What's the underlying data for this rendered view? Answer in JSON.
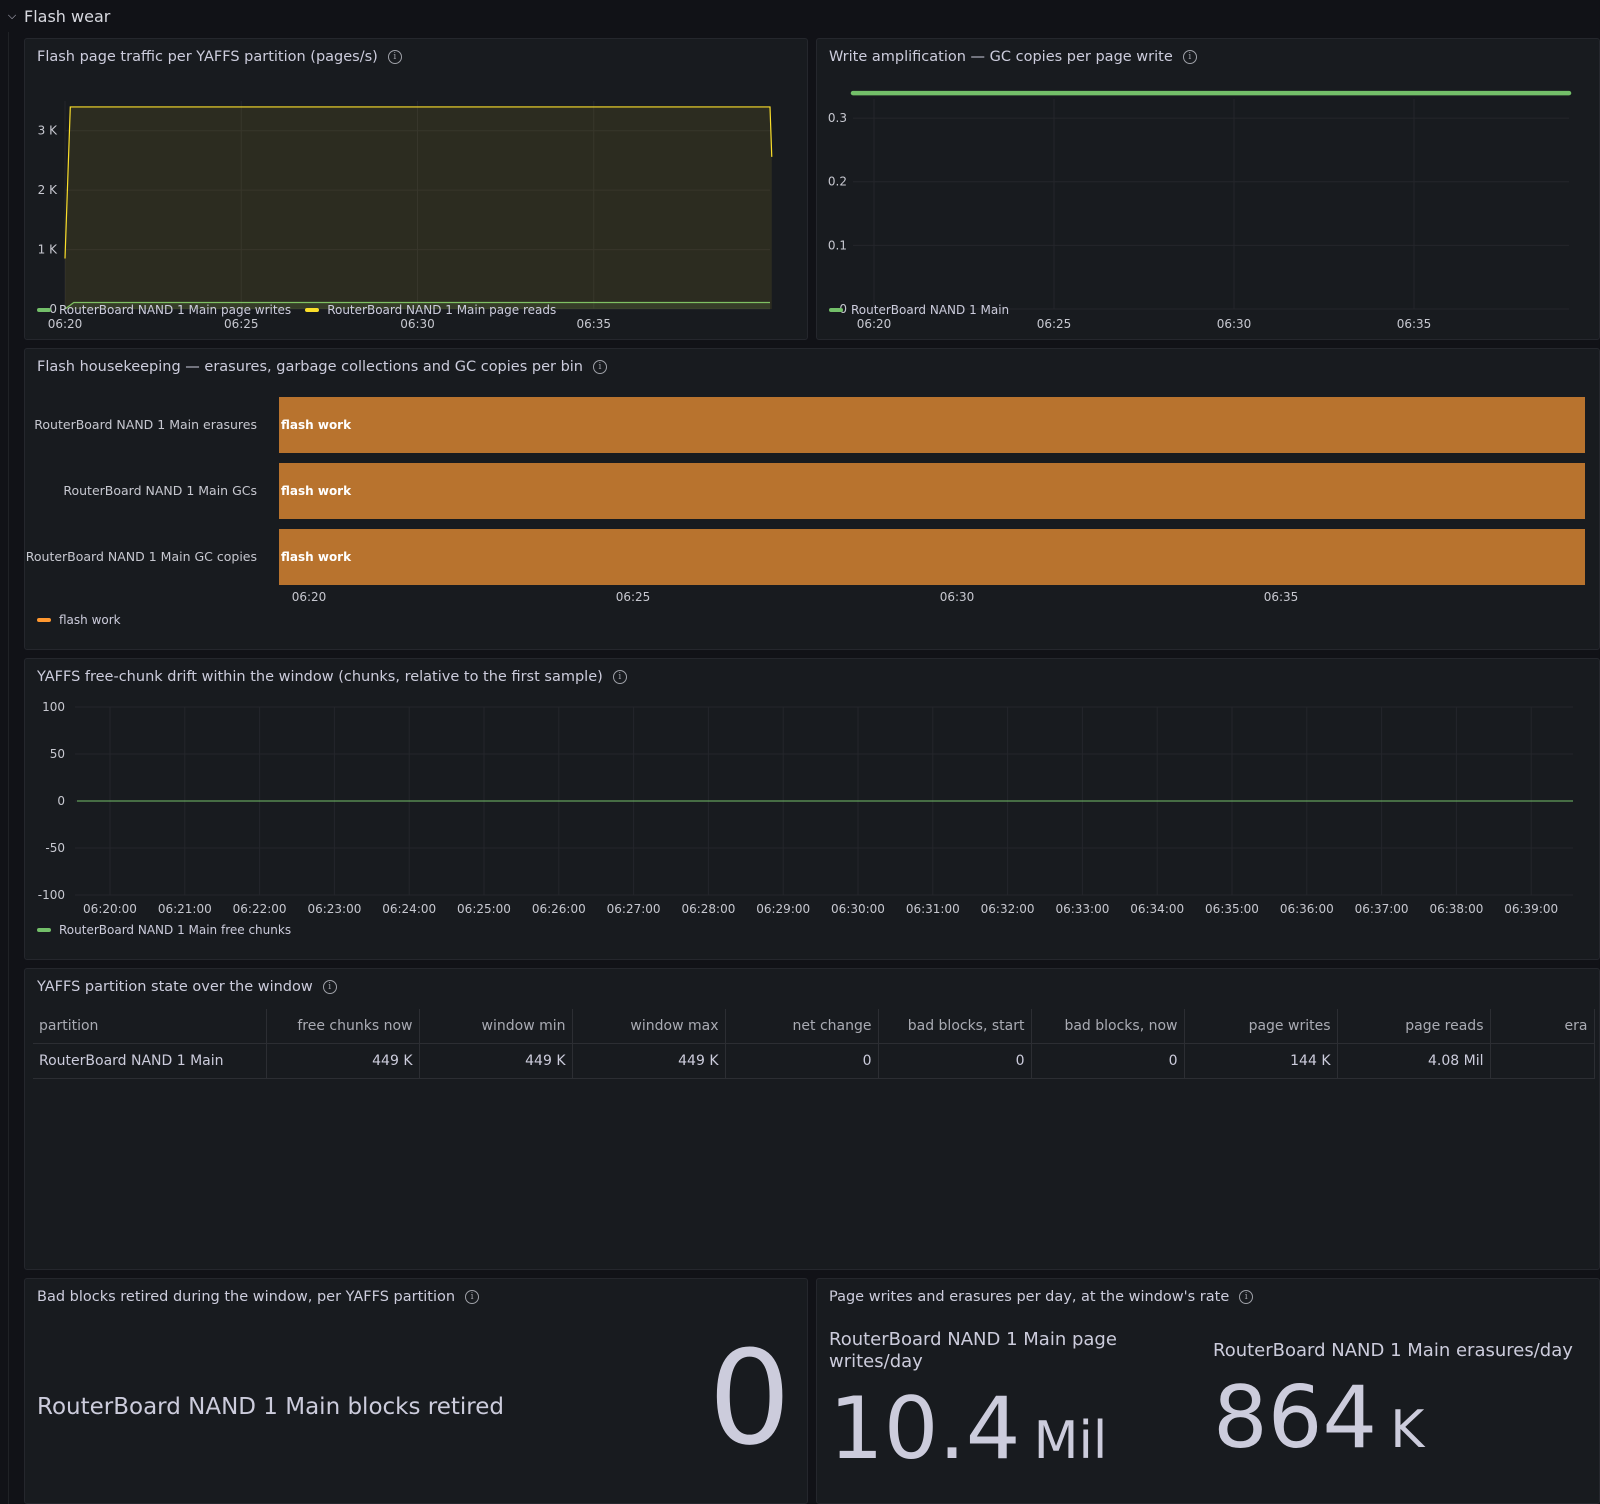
{
  "row": {
    "title": "Flash wear",
    "chevron_icon": "chevron-down-icon"
  },
  "colors": {
    "green": "#73bf69",
    "yellow": "#fade2a",
    "orange": "#b8732e",
    "background": "#111217",
    "panel": "#181b1f"
  },
  "traffic": {
    "title": "Flash page traffic per YAFFS partition (pages/s)",
    "chart_data": {
      "type": "area",
      "x": [
        "06:20",
        "06:25",
        "06:30",
        "06:35"
      ],
      "y_ticks": [
        "0",
        "1 K",
        "2 K",
        "3 K"
      ],
      "ylim": [
        0,
        3500
      ],
      "series": [
        {
          "name": "RouterBoard NAND 1 Main page writes",
          "color": "#73bf69",
          "points": [
            [
              0,
              0
            ],
            [
              0.5,
              110
            ],
            [
              40.0,
              110
            ]
          ]
        },
        {
          "name": "RouterBoard NAND 1 Main page reads",
          "color": "#fade2a",
          "points": [
            [
              0,
              850
            ],
            [
              0.3,
              3400
            ],
            [
              40.0,
              3400
            ],
            [
              40.1,
              2560
            ]
          ]
        }
      ]
    },
    "legend": [
      "RouterBoard NAND 1 Main page writes",
      "RouterBoard NAND 1 Main page reads"
    ]
  },
  "wamp": {
    "title": "Write amplification — GC copies per page write",
    "chart_data": {
      "type": "line",
      "x": [
        "06:20",
        "06:25",
        "06:30",
        "06:35"
      ],
      "y_ticks": [
        "0",
        "0.1",
        "0.2",
        "0.3"
      ],
      "ylim": [
        0,
        0.33
      ],
      "series": [
        {
          "name": "RouterBoard NAND 1 Main",
          "color": "#73bf69",
          "points": [
            [
              0,
              0.333
            ],
            [
              20,
              0.333
            ]
          ]
        }
      ]
    },
    "legend": [
      "RouterBoard NAND 1 Main"
    ]
  },
  "housekeeping": {
    "title": "Flash housekeeping — erasures, garbage collections and GC copies per bin",
    "chart_data": {
      "type": "bar",
      "categories": [
        "RouterBoard NAND 1 Main erasures",
        "RouterBoard NAND 1 Main GCs",
        "RouterBoard NAND 1 Main GC copies"
      ],
      "state": "flash work",
      "x": [
        "06:20",
        "06:25",
        "06:30",
        "06:35"
      ]
    },
    "legend": [
      "flash work"
    ]
  },
  "drift": {
    "title": "YAFFS free-chunk drift within the window (chunks, relative to the first sample)",
    "chart_data": {
      "type": "line",
      "x": [
        "06:20:00",
        "06:21:00",
        "06:22:00",
        "06:23:00",
        "06:24:00",
        "06:25:00",
        "06:26:00",
        "06:27:00",
        "06:28:00",
        "06:29:00",
        "06:30:00",
        "06:31:00",
        "06:32:00",
        "06:33:00",
        "06:34:00",
        "06:35:00",
        "06:36:00",
        "06:37:00",
        "06:38:00",
        "06:39:00"
      ],
      "y_ticks": [
        "100",
        "50",
        "0",
        "-50",
        "-100"
      ],
      "ylim": [
        -100,
        100
      ],
      "series": [
        {
          "name": "RouterBoard NAND 1 Main free chunks",
          "color": "#73bf69",
          "value": 0
        }
      ]
    },
    "legend": [
      "RouterBoard NAND 1 Main free chunks"
    ]
  },
  "table": {
    "title": "YAFFS partition state over the window",
    "columns": [
      "partition",
      "free chunks now",
      "window min",
      "window max",
      "net change",
      "bad blocks, start",
      "bad blocks, now",
      "page writes",
      "page reads",
      "era"
    ],
    "rows": [
      [
        "RouterBoard NAND 1 Main",
        "449 K",
        "449 K",
        "449 K",
        "0",
        "0",
        "0",
        "144 K",
        "4.08 Mil",
        ""
      ]
    ]
  },
  "badblocks": {
    "title": "Bad blocks retired during the window, per YAFFS partition",
    "label": "RouterBoard NAND 1 Main blocks retired",
    "value": "0"
  },
  "perday": {
    "title": "Page writes and erasures per day, at the window's rate",
    "stats": [
      {
        "label": "RouterBoard NAND 1 Main page writes/day",
        "value": "10.4",
        "unit": "Mil"
      },
      {
        "label": "RouterBoard NAND 1 Main erasures/day",
        "value": "864",
        "unit": "K"
      }
    ]
  }
}
